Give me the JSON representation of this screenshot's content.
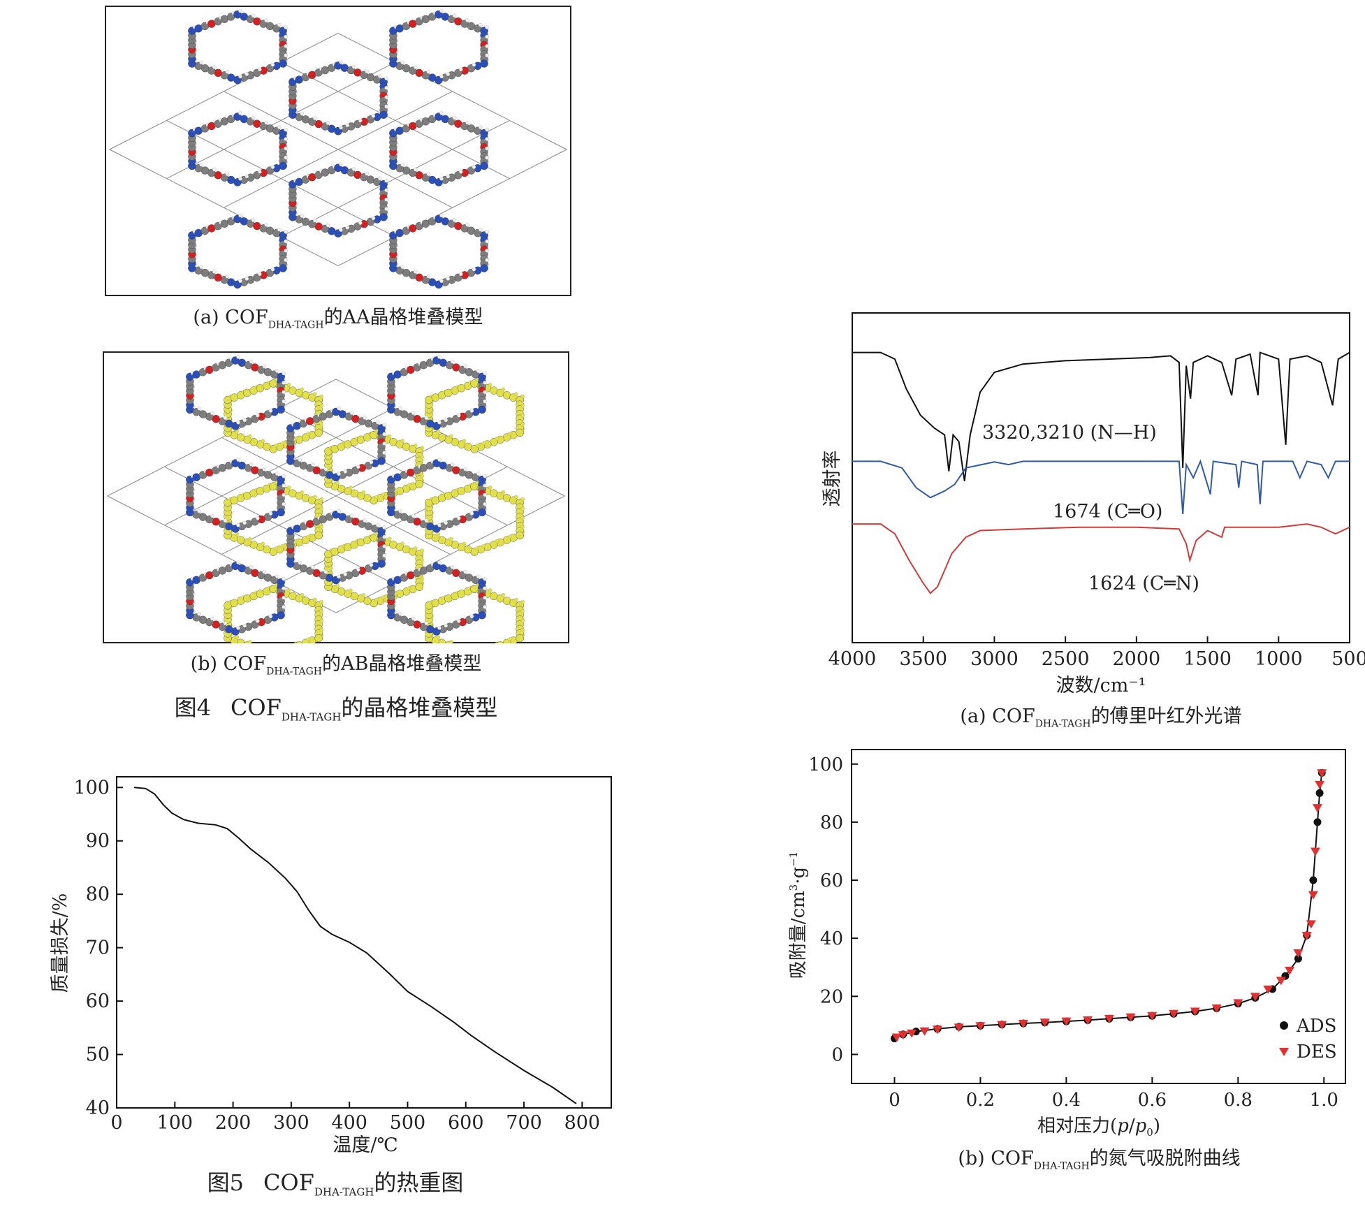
{
  "captions": {
    "aa": {
      "prefix": "(a) COF",
      "sub": "DHA-TAGH",
      "suffix": "的AA晶格堆叠模型"
    },
    "ab": {
      "prefix": "(b) COF",
      "sub": "DHA-TAGH",
      "suffix": "的AB晶格堆叠模型"
    },
    "ftir": {
      "prefix": "(a) COF",
      "sub": "DHA-TAGH",
      "suffix": "的傅里叶红外光谱"
    },
    "bet": {
      "prefix": "(b) COF",
      "sub": "DHA-TAGH",
      "suffix": "的氮气吸脱附曲线"
    }
  },
  "figure_titles": {
    "fig4": {
      "num": "图4",
      "prefix": "COF",
      "sub": "DHA-TAGH",
      "suffix": "的晶格堆叠模型"
    },
    "fig5": {
      "num": "图5",
      "prefix": "COF",
      "sub": "DHA-TAGH",
      "suffix": "的热重图"
    }
  },
  "colors": {
    "carbon": "#7d7d7d",
    "nitrogen": "#2b4fb8",
    "oxygen": "#d42020",
    "hydrogen": "#f0f0f0",
    "ab_layer": "#e2e04a",
    "ftir_black": "#111111",
    "ftir_blue": "#2f5aa8",
    "ftir_red": "#d23a3a",
    "ads": "#111111",
    "des": "#e03030"
  },
  "chart_data": [
    {
      "type": "line",
      "id": "ftir",
      "title": "",
      "xlabel": "波数/cm⁻¹",
      "ylabel": "透射率",
      "xlim": [
        4000,
        500
      ],
      "xticks": [
        "4000",
        "3500",
        "3000",
        "2500",
        "2000",
        "1500",
        "1000",
        "500"
      ],
      "series": [
        {
          "color": "#111111",
          "annotation": "3320,3210 (N—H)",
          "points": [
            [
              4000,
              0.88
            ],
            [
              3800,
              0.88
            ],
            [
              3700,
              0.86
            ],
            [
              3620,
              0.77
            ],
            [
              3520,
              0.69
            ],
            [
              3420,
              0.65
            ],
            [
              3350,
              0.63
            ],
            [
              3320,
              0.52
            ],
            [
              3290,
              0.63
            ],
            [
              3250,
              0.61
            ],
            [
              3210,
              0.49
            ],
            [
              3170,
              0.63
            ],
            [
              3100,
              0.76
            ],
            [
              3000,
              0.82
            ],
            [
              2800,
              0.845
            ],
            [
              2500,
              0.855
            ],
            [
              2200,
              0.86
            ],
            [
              1900,
              0.865
            ],
            [
              1760,
              0.87
            ],
            [
              1700,
              0.85
            ],
            [
              1674,
              0.53
            ],
            [
              1650,
              0.84
            ],
            [
              1620,
              0.74
            ],
            [
              1600,
              0.85
            ],
            [
              1500,
              0.87
            ],
            [
              1400,
              0.85
            ],
            [
              1330,
              0.75
            ],
            [
              1300,
              0.86
            ],
            [
              1200,
              0.875
            ],
            [
              1145,
              0.75
            ],
            [
              1130,
              0.88
            ],
            [
              1000,
              0.86
            ],
            [
              950,
              0.6
            ],
            [
              920,
              0.86
            ],
            [
              800,
              0.87
            ],
            [
              700,
              0.85
            ],
            [
              620,
              0.72
            ],
            [
              580,
              0.86
            ],
            [
              500,
              0.88
            ]
          ]
        },
        {
          "color": "#2f5aa8",
          "annotation": "1674 (C═O)",
          "points": [
            [
              4000,
              0.55
            ],
            [
              3800,
              0.55
            ],
            [
              3650,
              0.53
            ],
            [
              3550,
              0.47
            ],
            [
              3450,
              0.44
            ],
            [
              3350,
              0.46
            ],
            [
              3280,
              0.48
            ],
            [
              3200,
              0.53
            ],
            [
              3000,
              0.548
            ],
            [
              2900,
              0.54
            ],
            [
              2800,
              0.55
            ],
            [
              2200,
              0.55
            ],
            [
              1800,
              0.55
            ],
            [
              1700,
              0.55
            ],
            [
              1674,
              0.39
            ],
            [
              1650,
              0.54
            ],
            [
              1600,
              0.5
            ],
            [
              1550,
              0.55
            ],
            [
              1480,
              0.45
            ],
            [
              1460,
              0.55
            ],
            [
              1300,
              0.54
            ],
            [
              1280,
              0.47
            ],
            [
              1260,
              0.55
            ],
            [
              1150,
              0.54
            ],
            [
              1130,
              0.42
            ],
            [
              1110,
              0.55
            ],
            [
              900,
              0.55
            ],
            [
              850,
              0.5
            ],
            [
              800,
              0.55
            ],
            [
              700,
              0.54
            ],
            [
              650,
              0.5
            ],
            [
              600,
              0.55
            ],
            [
              500,
              0.55
            ]
          ]
        },
        {
          "color": "#d23a3a",
          "annotation": "1624 (C═N)",
          "points": [
            [
              4000,
              0.36
            ],
            [
              3800,
              0.36
            ],
            [
              3700,
              0.33
            ],
            [
              3600,
              0.25
            ],
            [
              3500,
              0.18
            ],
            [
              3450,
              0.15
            ],
            [
              3400,
              0.17
            ],
            [
              3300,
              0.27
            ],
            [
              3200,
              0.32
            ],
            [
              3100,
              0.34
            ],
            [
              2800,
              0.345
            ],
            [
              2400,
              0.35
            ],
            [
              2000,
              0.35
            ],
            [
              1700,
              0.345
            ],
            [
              1650,
              0.3
            ],
            [
              1624,
              0.25
            ],
            [
              1580,
              0.31
            ],
            [
              1500,
              0.34
            ],
            [
              1400,
              0.32
            ],
            [
              1380,
              0.35
            ],
            [
              1000,
              0.35
            ],
            [
              800,
              0.36
            ],
            [
              700,
              0.35
            ],
            [
              600,
              0.33
            ],
            [
              500,
              0.35
            ]
          ]
        }
      ]
    },
    {
      "type": "line",
      "id": "tga",
      "title": "",
      "xlabel": "温度/℃",
      "ylabel": "质量损失/%",
      "xlim": [
        0,
        850
      ],
      "ylim": [
        40,
        102
      ],
      "xticks": [
        "0",
        "100",
        "200",
        "300",
        "400",
        "500",
        "600",
        "700",
        "800"
      ],
      "yticks": [
        "40",
        "50",
        "60",
        "70",
        "80",
        "90",
        "100"
      ],
      "series": [
        {
          "points": [
            [
              30,
              100
            ],
            [
              50,
              99.8
            ],
            [
              65,
              98.8
            ],
            [
              80,
              96.8
            ],
            [
              95,
              95.2
            ],
            [
              115,
              94.0
            ],
            [
              140,
              93.3
            ],
            [
              170,
              93.0
            ],
            [
              190,
              92.3
            ],
            [
              210,
              90.5
            ],
            [
              230,
              88.5
            ],
            [
              260,
              86.0
            ],
            [
              290,
              83.0
            ],
            [
              310,
              80.5
            ],
            [
              330,
              77.0
            ],
            [
              350,
              74.0
            ],
            [
              370,
              72.5
            ],
            [
              400,
              71.0
            ],
            [
              430,
              69.0
            ],
            [
              470,
              65.0
            ],
            [
              500,
              61.8
            ],
            [
              540,
              59.0
            ],
            [
              580,
              56.0
            ],
            [
              610,
              53.5
            ],
            [
              650,
              50.5
            ],
            [
              700,
              47.0
            ],
            [
              750,
              43.8
            ],
            [
              790,
              40.8
            ]
          ]
        }
      ]
    },
    {
      "type": "scatter",
      "id": "n2_isotherm",
      "title": "",
      "xlabel_parts": {
        "prefix": "相对压力(",
        "italic_p": "p",
        "slash": "/",
        "italic_p0": "p",
        "sub0": "0",
        "suffix": ")"
      },
      "ylabel_parts": {
        "prefix": "吸附量/cm",
        "sup3": "3",
        "mid": "·g",
        "supm1": "−1"
      },
      "xlim": [
        -0.1,
        1.05
      ],
      "ylim": [
        -10,
        105
      ],
      "xticks": [
        "0",
        "0.2",
        "0.4",
        "0.6",
        "0.8",
        "1.0"
      ],
      "yticks": [
        "0",
        "20",
        "40",
        "60",
        "80",
        "100"
      ],
      "legend": {
        "position": "bottom-right",
        "ads": "ADS",
        "des": "DES"
      },
      "series": [
        {
          "name": "ADS",
          "marker": "circle",
          "color": "#111111",
          "points": [
            [
              0.0,
              5.5
            ],
            [
              0.02,
              6.9
            ],
            [
              0.05,
              7.9
            ],
            [
              0.1,
              8.8
            ],
            [
              0.15,
              9.5
            ],
            [
              0.2,
              9.9
            ],
            [
              0.25,
              10.3
            ],
            [
              0.3,
              10.7
            ],
            [
              0.35,
              11.0
            ],
            [
              0.4,
              11.4
            ],
            [
              0.45,
              11.8
            ],
            [
              0.5,
              12.3
            ],
            [
              0.55,
              12.8
            ],
            [
              0.6,
              13.3
            ],
            [
              0.65,
              14.0
            ],
            [
              0.7,
              14.8
            ],
            [
              0.75,
              15.9
            ],
            [
              0.8,
              17.5
            ],
            [
              0.84,
              19.5
            ],
            [
              0.88,
              22.5
            ],
            [
              0.91,
              27.0
            ],
            [
              0.94,
              33.0
            ],
            [
              0.96,
              41.0
            ],
            [
              0.975,
              60.0
            ],
            [
              0.985,
              80.0
            ],
            [
              0.99,
              90.0
            ],
            [
              0.995,
              97.0
            ]
          ]
        },
        {
          "name": "DES",
          "marker": "triangle-down",
          "color": "#e03030",
          "points": [
            [
              0.995,
              97.0
            ],
            [
              0.99,
              93.0
            ],
            [
              0.985,
              85.0
            ],
            [
              0.98,
              70.0
            ],
            [
              0.975,
              55.0
            ],
            [
              0.97,
              45.0
            ],
            [
              0.96,
              41.0
            ],
            [
              0.94,
              35.0
            ],
            [
              0.92,
              29.0
            ],
            [
              0.9,
              25.5
            ],
            [
              0.87,
              22.5
            ],
            [
              0.84,
              20.0
            ],
            [
              0.8,
              17.8
            ],
            [
              0.75,
              16.0
            ],
            [
              0.7,
              14.9
            ],
            [
              0.65,
              14.1
            ],
            [
              0.6,
              13.4
            ],
            [
              0.55,
              12.9
            ],
            [
              0.5,
              12.4
            ],
            [
              0.45,
              11.9
            ],
            [
              0.4,
              11.5
            ],
            [
              0.35,
              11.1
            ],
            [
              0.3,
              10.7
            ],
            [
              0.25,
              10.3
            ],
            [
              0.2,
              9.9
            ],
            [
              0.15,
              9.4
            ],
            [
              0.1,
              8.7
            ],
            [
              0.07,
              8.1
            ],
            [
              0.04,
              7.4
            ],
            [
              0.02,
              6.8
            ],
            [
              0.005,
              6.0
            ]
          ]
        }
      ]
    }
  ]
}
